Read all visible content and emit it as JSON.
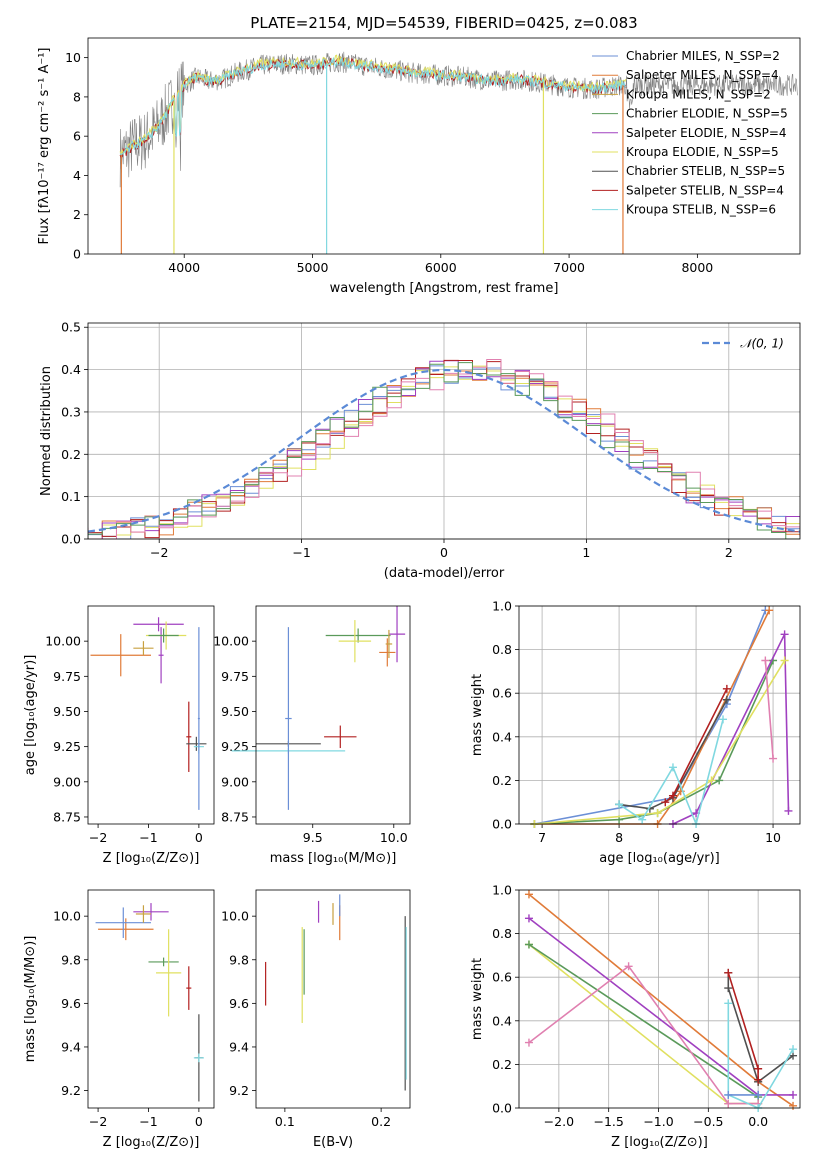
{
  "title": "PLATE=2154, MJD=54539, FIBERID=0425, z=0.083",
  "colors": {
    "chabrier_miles": "#6b8fd6",
    "salpeter_miles": "#e07b39",
    "kroupa_miles": "#c8a040",
    "chabrier_elodie": "#5a9a5a",
    "salpeter_elodie": "#a040c0",
    "kroupa_elodie": "#e0e060",
    "chabrier_stelib": "#505050",
    "salpeter_stelib": "#b22020",
    "kroupa_stelib": "#80d8e0",
    "data": "#808080",
    "normal": "#5b8ad6"
  },
  "chart_data": [
    {
      "type": "line",
      "name": "spectrum",
      "xlabel": "wavelength [Angstrom, rest frame]",
      "ylabel": "Flux [fλ10⁻¹⁷ erg cm⁻² s⁻¹ A⁻¹]",
      "xlim": [
        3250,
        8800
      ],
      "ylim": [
        0,
        11
      ],
      "xticks": [
        "4000",
        "5000",
        "6000",
        "7000",
        "8000"
      ],
      "yticks": [
        "0",
        "2",
        "4",
        "6",
        "8",
        "10"
      ],
      "legend": [
        "Chabrier MILES, N_SSP=2",
        "Salpeter MILES, N_SSP=4",
        "Kroupa MILES, N_SSP=2",
        "Chabrier ELODIE, N_SSP=5",
        "Salpeter ELODIE, N_SSP=4",
        "Kroupa ELODIE, N_SSP=5",
        "Chabrier STELIB, N_SSP=5",
        "Salpeter STELIB, N_SSP=4",
        "Kroupa STELIB, N_SSP=6"
      ],
      "legend_placement": "upper right",
      "continuum_model": {
        "x": [
          3500,
          3600,
          3700,
          3800,
          3900,
          4000,
          4100,
          4200,
          4300,
          4400,
          4500,
          4600,
          4800,
          5000,
          5200,
          5400,
          5600,
          5800,
          6000,
          6200,
          6400,
          6600,
          6800,
          7000,
          7200,
          7400
        ],
        "y": [
          5.0,
          5.5,
          5.8,
          6.5,
          7.6,
          8.6,
          9.0,
          8.8,
          8.9,
          9.2,
          9.4,
          9.6,
          9.7,
          9.6,
          9.8,
          9.6,
          9.4,
          9.2,
          9.1,
          9.0,
          8.8,
          8.9,
          8.7,
          8.5,
          8.4,
          8.6
        ]
      }
    },
    {
      "type": "histogram",
      "name": "residuals",
      "xlabel": "(data-model)/error",
      "ylabel": "Normed distribution",
      "xlim": [
        -2.5,
        2.5
      ],
      "ylim": [
        0,
        0.51
      ],
      "xticks": [
        "−2",
        "−1",
        "0",
        "1",
        "2"
      ],
      "yticks": [
        "0.0",
        "0.1",
        "0.2",
        "0.3",
        "0.4",
        "0.5"
      ],
      "legend": [
        "𝒩(0, 1)"
      ],
      "legend_placement": "upper right",
      "bin_width": 0.1,
      "grid": true
    },
    {
      "type": "scatter",
      "name": "age-vs-Z",
      "xlabel": "Z [log₁₀(Z/Z⊙)]",
      "ylabel": "age  [log₁₀(age/yr)]",
      "xlim": [
        -2.2,
        0.3
      ],
      "ylim": [
        8.7,
        10.25
      ],
      "xticks": [
        "−2",
        "−1",
        "0"
      ],
      "yticks": [
        "8.75",
        "9.00",
        "9.25",
        "9.50",
        "9.75",
        "10.00"
      ],
      "points": [
        {
          "series": "salpeter_miles",
          "x": -1.55,
          "y": 9.9,
          "xerr": 0.6,
          "yerr": 0.15
        },
        {
          "series": "salpeter_elodie",
          "x": -0.8,
          "y": 10.12,
          "xerr": 0.5,
          "yerr": 0.05
        },
        {
          "series": "salpeter_elodie",
          "x": -0.75,
          "y": 9.9,
          "xerr": 0.05,
          "yerr": 0.2
        },
        {
          "series": "kroupa_elodie",
          "x": -0.65,
          "y": 10.04,
          "xerr": 0.4,
          "yerr": 0.1
        },
        {
          "series": "chabrier_elodie",
          "x": -0.7,
          "y": 10.04,
          "xerr": 0.3,
          "yerr": 0.05
        },
        {
          "series": "kroupa_miles",
          "x": -1.1,
          "y": 9.95,
          "xerr": 0.2,
          "yerr": 0.05
        },
        {
          "series": "salpeter_stelib",
          "x": -0.2,
          "y": 9.32,
          "xerr": 0.05,
          "yerr": 0.25
        },
        {
          "series": "chabrier_stelib",
          "x": -0.05,
          "y": 9.27,
          "xerr": 0.2,
          "yerr": 0.05
        },
        {
          "series": "kroupa_stelib",
          "x": 0.0,
          "y": 9.25,
          "xerr": 0.1,
          "yerr": 0.05
        },
        {
          "series": "chabrier_miles",
          "x": 0.0,
          "y": 9.45,
          "xerr": 0.02,
          "yerr": 0.65
        }
      ]
    },
    {
      "type": "scatter",
      "name": "age-vs-mass",
      "xlabel": "mass [log₁₀(M/M⊙)]",
      "ylabel": "",
      "xlim": [
        9.15,
        10.1
      ],
      "ylim": [
        8.7,
        10.25
      ],
      "xticks": [
        "9.0",
        "9.5",
        "10.0"
      ],
      "yticks": [
        "8.75",
        "9.00",
        "9.25",
        "9.50",
        "9.75",
        "10.00"
      ],
      "points": [
        {
          "series": "chabrier_elodie",
          "x": 9.78,
          "y": 10.04,
          "xerr": 0.2,
          "yerr": 0.05
        },
        {
          "series": "kroupa_elodie",
          "x": 9.76,
          "y": 10.0,
          "xerr": 0.1,
          "yerr": 0.15
        },
        {
          "series": "salpeter_elodie",
          "x": 10.02,
          "y": 10.05,
          "xerr": 0.05,
          "yerr": 0.2
        },
        {
          "series": "salpeter_miles",
          "x": 9.96,
          "y": 9.92,
          "xerr": 0.05,
          "yerr": 0.1
        },
        {
          "series": "kroupa_miles",
          "x": 9.97,
          "y": 9.98,
          "xerr": 0.02,
          "yerr": 0.1
        },
        {
          "series": "salpeter_stelib",
          "x": 9.67,
          "y": 9.32,
          "xerr": 0.1,
          "yerr": 0.08
        },
        {
          "series": "chabrier_stelib",
          "x": 9.35,
          "y": 9.27,
          "xerr": 0.2,
          "yerr": 0.02
        },
        {
          "series": "kroupa_stelib",
          "x": 9.35,
          "y": 9.22,
          "xerr": 0.35,
          "yerr": 0.02
        },
        {
          "series": "chabrier_miles",
          "x": 9.35,
          "y": 9.45,
          "xerr": 0.02,
          "yerr": 0.65
        }
      ]
    },
    {
      "type": "line",
      "name": "mass-weight-vs-age",
      "xlabel": "age  [log₁₀(age/yr)]",
      "ylabel": "mass weight",
      "xlim": [
        6.7,
        10.35
      ],
      "ylim": [
        0,
        1.0
      ],
      "xticks": [
        "7",
        "8",
        "9",
        "10"
      ],
      "yticks": [
        "0.0",
        "0.2",
        "0.4",
        "0.6",
        "0.8",
        "1.0"
      ],
      "grid": true,
      "series": [
        {
          "name": "chabrier_miles",
          "x": [
            6.9,
            8.7,
            9.4,
            9.9
          ],
          "y": [
            0.0,
            0.12,
            0.55,
            0.98
          ]
        },
        {
          "name": "salpeter_miles",
          "x": [
            6.9,
            8.5,
            8.8,
            9.95
          ],
          "y": [
            0.0,
            0.0,
            0.15,
            0.98
          ]
        },
        {
          "name": "chabrier_elodie",
          "x": [
            6.9,
            8.0,
            8.5,
            9.3,
            10.0
          ],
          "y": [
            0.0,
            0.02,
            0.05,
            0.2,
            0.75
          ]
        },
        {
          "name": "salpeter_elodie",
          "x": [
            8.7,
            9.0,
            10.15,
            10.2
          ],
          "y": [
            0.0,
            0.05,
            0.87,
            0.06
          ]
        },
        {
          "name": "kroupa_elodie",
          "x": [
            6.9,
            8.5,
            9.2,
            10.15
          ],
          "y": [
            0.0,
            0.05,
            0.2,
            0.75
          ]
        },
        {
          "name": "chabrier_stelib",
          "x": [
            8.0,
            8.4,
            8.7,
            9.4
          ],
          "y": [
            0.09,
            0.07,
            0.12,
            0.57
          ]
        },
        {
          "name": "salpeter_stelib",
          "x": [
            8.6,
            8.7,
            9.4
          ],
          "y": [
            0.1,
            0.13,
            0.62
          ]
        },
        {
          "name": "kroupa_stelib",
          "x": [
            8.0,
            8.3,
            8.7,
            9.0,
            9.35
          ],
          "y": [
            0.09,
            0.02,
            0.26,
            0.0,
            0.48
          ]
        },
        {
          "name": "pink",
          "x": [
            9.9,
            10.0
          ],
          "y": [
            0.75,
            0.3
          ]
        }
      ]
    },
    {
      "type": "scatter",
      "name": "mass-vs-Z",
      "xlabel": "Z [log₁₀(Z/Z⊙)]",
      "ylabel": "mass [log₁₀(M/M⊙)]",
      "xlim": [
        -2.2,
        0.3
      ],
      "ylim": [
        9.12,
        10.12
      ],
      "xticks": [
        "−2",
        "−1",
        "0"
      ],
      "yticks": [
        "9.2",
        "9.4",
        "9.6",
        "9.8",
        "10.0"
      ],
      "points": [
        {
          "series": "salpeter_miles",
          "x": -1.45,
          "y": 9.94,
          "xerr": 0.55,
          "yerr": 0.05
        },
        {
          "series": "chabrier_miles",
          "x": -1.5,
          "y": 9.97,
          "xerr": 0.55,
          "yerr": 0.07
        },
        {
          "series": "salpeter_elodie",
          "x": -0.95,
          "y": 10.02,
          "xerr": 0.35,
          "yerr": 0.04
        },
        {
          "series": "kroupa_miles",
          "x": -1.1,
          "y": 10.01,
          "xerr": 0.15,
          "yerr": 0.04
        },
        {
          "series": "chabrier_elodie",
          "x": -0.7,
          "y": 9.79,
          "xerr": 0.3,
          "yerr": 0.02
        },
        {
          "series": "kroupa_elodie",
          "x": -0.6,
          "y": 9.74,
          "xerr": 0.25,
          "yerr": 0.2
        },
        {
          "series": "salpeter_stelib",
          "x": -0.2,
          "y": 9.67,
          "xerr": 0.05,
          "yerr": 0.1
        },
        {
          "series": "chabrier_stelib",
          "x": 0.0,
          "y": 9.35,
          "xerr": 0.08,
          "yerr": 0.2
        },
        {
          "series": "kroupa_stelib",
          "x": 0.0,
          "y": 9.35,
          "xerr": 0.1,
          "yerr": 0.02
        }
      ]
    },
    {
      "type": "scatter",
      "name": "mass-vs-ebv",
      "xlabel": "E(B-V)",
      "ylabel": "",
      "xlim": [
        0.07,
        0.23
      ],
      "ylim": [
        9.12,
        10.12
      ],
      "xticks": [
        "0.1",
        "0.2"
      ],
      "yticks": [
        "9.2",
        "9.4",
        "9.6",
        "9.8",
        "10.0"
      ],
      "points": [
        {
          "series": "salpeter_stelib",
          "x": 0.08,
          "y": 9.69,
          "yerr": 0.1
        },
        {
          "series": "kroupa_elodie",
          "x": 0.118,
          "y": 9.73,
          "yerr": 0.22
        },
        {
          "series": "chabrier_elodie",
          "x": 0.12,
          "y": 9.79,
          "yerr": 0.15
        },
        {
          "series": "salpeter_elodie",
          "x": 0.135,
          "y": 10.02,
          "yerr": 0.05
        },
        {
          "series": "kroupa_miles",
          "x": 0.15,
          "y": 10.01,
          "yerr": 0.05
        },
        {
          "series": "salpeter_miles",
          "x": 0.157,
          "y": 9.97,
          "yerr": 0.08
        },
        {
          "series": "chabrier_miles",
          "x": 0.157,
          "y": 10.05,
          "yerr": 0.05
        },
        {
          "series": "chabrier_stelib",
          "x": 0.225,
          "y": 9.6,
          "yerr": 0.4
        },
        {
          "series": "kroupa_stelib",
          "x": 0.226,
          "y": 9.6,
          "yerr": 0.35
        }
      ]
    },
    {
      "type": "line",
      "name": "mass-weight-vs-Z",
      "xlabel": "Z [log₁₀(Z/Z⊙)]",
      "ylabel": "mass weight",
      "xlim": [
        -2.4,
        0.42
      ],
      "ylim": [
        0,
        1.0
      ],
      "xticks": [
        "−2.0",
        "−1.5",
        "−1.0",
        "−0.5",
        "0.0"
      ],
      "yticks": [
        "0.0",
        "0.2",
        "0.4",
        "0.6",
        "0.8",
        "1.0"
      ],
      "grid": true,
      "series": [
        {
          "name": "salpeter_miles",
          "x": [
            -2.3,
            0.0,
            0.35
          ],
          "y": [
            0.98,
            0.12,
            0.01
          ]
        },
        {
          "name": "salpeter_elodie",
          "x": [
            -2.3,
            0.0,
            0.35
          ],
          "y": [
            0.87,
            0.06,
            0.06
          ]
        },
        {
          "name": "kroupa_elodie",
          "x": [
            -2.3,
            -0.3,
            0.0
          ],
          "y": [
            0.75,
            0.02,
            0.02
          ]
        },
        {
          "name": "chabrier_elodie",
          "x": [
            -2.3,
            0.0
          ],
          "y": [
            0.75,
            0.05
          ]
        },
        {
          "name": "pink",
          "x": [
            -2.3,
            -1.3,
            -0.3,
            0.0
          ],
          "y": [
            0.3,
            0.65,
            0.02,
            0.02
          ]
        },
        {
          "name": "chabrier_stelib",
          "x": [
            -0.3,
            -0.3,
            0.0,
            0.35
          ],
          "y": [
            0.62,
            0.55,
            0.12,
            0.24
          ]
        },
        {
          "name": "salpeter_stelib",
          "x": [
            -0.3,
            0.0,
            0.0
          ],
          "y": [
            0.62,
            0.18,
            0.13
          ]
        },
        {
          "name": "kroupa_stelib",
          "x": [
            -0.3,
            -0.3,
            0.0,
            0.35
          ],
          "y": [
            0.48,
            0.06,
            0.0,
            0.27
          ]
        },
        {
          "name": "chabrier_miles",
          "x": [
            -0.3,
            0.0
          ],
          "y": [
            0.06,
            0.06
          ]
        }
      ]
    }
  ]
}
